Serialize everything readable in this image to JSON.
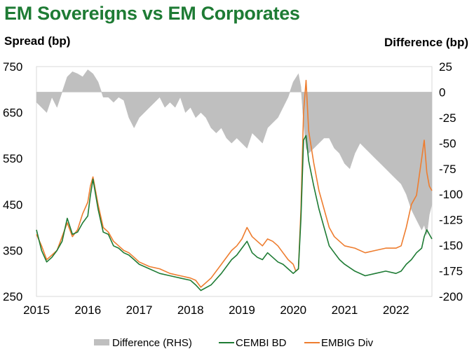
{
  "chart_data": {
    "type": "line",
    "title": "EM Sovereigns vs EM Corporates",
    "ylabel": "Spread (bp)",
    "y2label": "Difference (bp)",
    "ylim": [
      250,
      750
    ],
    "y2lim": [
      -200,
      25
    ],
    "yticks": [
      250,
      350,
      450,
      550,
      650,
      750
    ],
    "y2ticks": [
      -200,
      -175,
      -150,
      -125,
      -100,
      -75,
      -50,
      -25,
      0,
      25
    ],
    "xlim": [
      2015.0,
      2022.7
    ],
    "xticks": [
      2015,
      2016,
      2017,
      2018,
      2019,
      2020,
      2021,
      2022
    ],
    "xticklabels": [
      "2015",
      "2016",
      "2017",
      "2018",
      "2019",
      "2020",
      "2021",
      "2022"
    ],
    "legend": [
      "Difference (RHS)",
      "CEMBI BD",
      "EMBIG Div"
    ],
    "legend_position": "bottom",
    "colors": {
      "difference": "#bfbfbf",
      "cembi": "#1e7b34",
      "embig": "#ee7d2f"
    },
    "series": [
      {
        "name": "CEMBI BD",
        "axis": "left",
        "x": [
          2015.0,
          2015.1,
          2015.2,
          2015.3,
          2015.4,
          2015.5,
          2015.6,
          2015.7,
          2015.8,
          2015.9,
          2016.0,
          2016.05,
          2016.1,
          2016.2,
          2016.3,
          2016.4,
          2016.5,
          2016.6,
          2016.7,
          2016.8,
          2016.9,
          2017.0,
          2017.2,
          2017.4,
          2017.6,
          2017.8,
          2018.0,
          2018.1,
          2018.2,
          2018.4,
          2018.6,
          2018.8,
          2018.9,
          2019.0,
          2019.1,
          2019.2,
          2019.3,
          2019.4,
          2019.5,
          2019.6,
          2019.7,
          2019.8,
          2019.9,
          2020.0,
          2020.05,
          2020.1,
          2020.15,
          2020.2,
          2020.25,
          2020.3,
          2020.4,
          2020.5,
          2020.6,
          2020.7,
          2020.8,
          2020.9,
          2021.0,
          2021.2,
          2021.4,
          2021.6,
          2021.8,
          2022.0,
          2022.1,
          2022.2,
          2022.3,
          2022.4,
          2022.5,
          2022.55,
          2022.6,
          2022.65,
          2022.7
        ],
        "values": [
          395,
          350,
          325,
          335,
          350,
          370,
          420,
          385,
          390,
          410,
          425,
          470,
          505,
          440,
          390,
          385,
          360,
          355,
          345,
          340,
          330,
          320,
          310,
          300,
          295,
          290,
          285,
          275,
          263,
          275,
          300,
          330,
          340,
          355,
          370,
          345,
          335,
          330,
          345,
          335,
          325,
          320,
          310,
          300,
          305,
          310,
          420,
          590,
          600,
          545,
          490,
          440,
          400,
          360,
          345,
          330,
          320,
          305,
          295,
          300,
          305,
          300,
          305,
          320,
          330,
          345,
          355,
          380,
          395,
          385,
          375
        ]
      },
      {
        "name": "EMBIG Div",
        "axis": "left",
        "x": [
          2015.0,
          2015.1,
          2015.2,
          2015.3,
          2015.4,
          2015.5,
          2015.6,
          2015.7,
          2015.8,
          2015.9,
          2016.0,
          2016.05,
          2016.1,
          2016.2,
          2016.3,
          2016.4,
          2016.5,
          2016.6,
          2016.7,
          2016.8,
          2016.9,
          2017.0,
          2017.2,
          2017.4,
          2017.6,
          2017.8,
          2018.0,
          2018.1,
          2018.2,
          2018.4,
          2018.6,
          2018.8,
          2018.9,
          2019.0,
          2019.1,
          2019.2,
          2019.3,
          2019.4,
          2019.5,
          2019.6,
          2019.7,
          2019.8,
          2019.9,
          2020.0,
          2020.05,
          2020.1,
          2020.15,
          2020.2,
          2020.25,
          2020.3,
          2020.4,
          2020.5,
          2020.6,
          2020.7,
          2020.8,
          2020.9,
          2021.0,
          2021.2,
          2021.4,
          2021.6,
          2021.8,
          2022.0,
          2022.1,
          2022.2,
          2022.3,
          2022.4,
          2022.5,
          2022.55,
          2022.6,
          2022.65,
          2022.7
        ],
        "values": [
          385,
          360,
          330,
          340,
          350,
          380,
          410,
          380,
          395,
          430,
          455,
          490,
          510,
          450,
          400,
          390,
          370,
          360,
          350,
          345,
          335,
          325,
          315,
          310,
          300,
          295,
          290,
          285,
          270,
          290,
          320,
          350,
          360,
          375,
          400,
          380,
          370,
          360,
          375,
          370,
          360,
          345,
          330,
          320,
          305,
          310,
          440,
          650,
          720,
          610,
          540,
          480,
          440,
          400,
          380,
          370,
          360,
          355,
          345,
          350,
          355,
          355,
          360,
          400,
          450,
          470,
          550,
          590,
          520,
          490,
          480
        ]
      },
      {
        "name": "Difference (RHS)",
        "axis": "right",
        "type": "area",
        "x": [
          2015.0,
          2015.1,
          2015.2,
          2015.3,
          2015.4,
          2015.5,
          2015.6,
          2015.7,
          2015.8,
          2015.9,
          2016.0,
          2016.1,
          2016.2,
          2016.3,
          2016.4,
          2016.5,
          2016.6,
          2016.7,
          2016.8,
          2016.9,
          2017.0,
          2017.1,
          2017.2,
          2017.3,
          2017.4,
          2017.5,
          2017.6,
          2017.7,
          2017.8,
          2017.9,
          2018.0,
          2018.1,
          2018.2,
          2018.3,
          2018.4,
          2018.5,
          2018.6,
          2018.7,
          2018.8,
          2018.9,
          2019.0,
          2019.1,
          2019.2,
          2019.3,
          2019.4,
          2019.5,
          2019.6,
          2019.7,
          2019.8,
          2019.9,
          2020.0,
          2020.1,
          2020.15,
          2020.2,
          2020.25,
          2020.3,
          2020.4,
          2020.5,
          2020.6,
          2020.7,
          2020.8,
          2020.9,
          2021.0,
          2021.1,
          2021.2,
          2021.3,
          2021.4,
          2021.5,
          2021.6,
          2021.7,
          2021.8,
          2021.9,
          2022.0,
          2022.1,
          2022.2,
          2022.3,
          2022.4,
          2022.5,
          2022.55,
          2022.6,
          2022.65,
          2022.7
        ],
        "values": [
          -10,
          -15,
          -20,
          -5,
          -15,
          0,
          15,
          20,
          18,
          15,
          22,
          18,
          10,
          -5,
          -5,
          -10,
          -5,
          -8,
          -25,
          -35,
          -25,
          -20,
          -15,
          -10,
          -5,
          -15,
          -10,
          -15,
          -5,
          -20,
          -15,
          -25,
          -20,
          -25,
          -35,
          -40,
          -35,
          -45,
          -50,
          -45,
          -50,
          -55,
          -40,
          -45,
          -50,
          -35,
          -30,
          -25,
          -15,
          -5,
          10,
          18,
          5,
          -30,
          -55,
          -60,
          -55,
          -50,
          -45,
          -45,
          -55,
          -60,
          -70,
          -75,
          -60,
          -50,
          -55,
          -60,
          -65,
          -70,
          -75,
          -80,
          -85,
          -90,
          -100,
          -115,
          -125,
          -135,
          -130,
          -140,
          -120,
          -110
        ]
      }
    ]
  }
}
